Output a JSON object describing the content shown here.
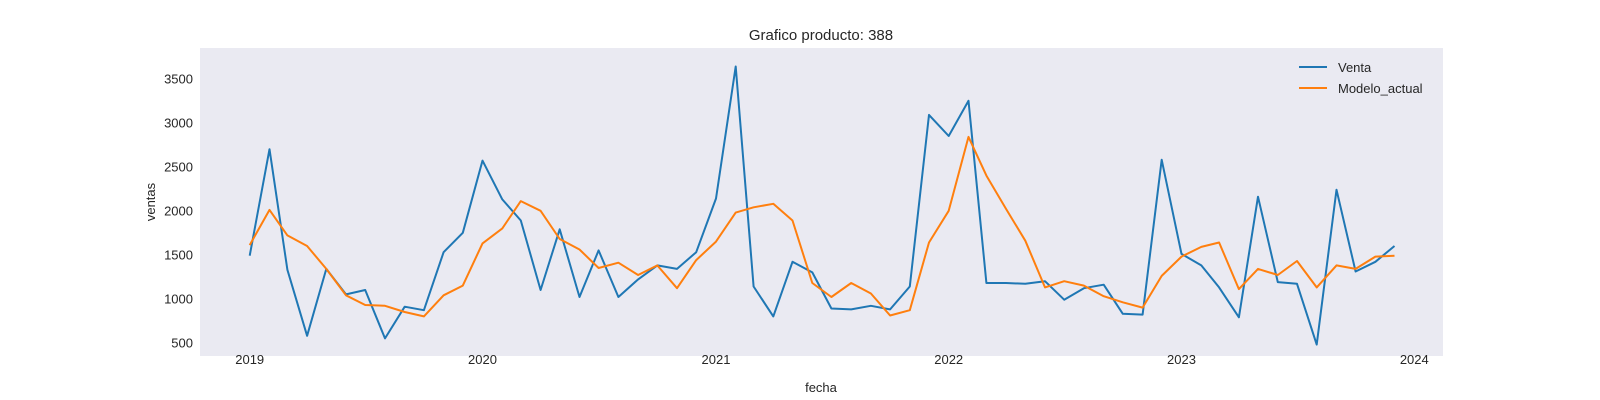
{
  "chart_data": {
    "type": "line",
    "title": "Grafico producto: 388",
    "xlabel": "fecha",
    "ylabel": "ventas",
    "x_start": "2019-01",
    "x_ticks": [
      "2019",
      "2020",
      "2021",
      "2022",
      "2023",
      "2024"
    ],
    "xlim": [
      "2018-10-15",
      "2024-02-15"
    ],
    "ylim": [
      350,
      3850
    ],
    "y_ticks": [
      500,
      1000,
      1500,
      2000,
      2500,
      3000,
      3500
    ],
    "grid": false,
    "legend_position": "top-right",
    "x": [
      "2019-01",
      "2019-02",
      "2019-03",
      "2019-04",
      "2019-05",
      "2019-06",
      "2019-07",
      "2019-08",
      "2019-09",
      "2019-10",
      "2019-11",
      "2019-12",
      "2020-01",
      "2020-02",
      "2020-03",
      "2020-04",
      "2020-05",
      "2020-06",
      "2020-07",
      "2020-08",
      "2020-09",
      "2020-10",
      "2020-11",
      "2020-12",
      "2021-01",
      "2021-02",
      "2021-03",
      "2021-04",
      "2021-05",
      "2021-06",
      "2021-07",
      "2021-08",
      "2021-09",
      "2021-10",
      "2021-11",
      "2021-12",
      "2022-01",
      "2022-02",
      "2022-03",
      "2022-04",
      "2022-05",
      "2022-06",
      "2022-07",
      "2022-08",
      "2022-09",
      "2022-10",
      "2022-11",
      "2022-12",
      "2023-01",
      "2023-02",
      "2023-03",
      "2023-04",
      "2023-05",
      "2023-06",
      "2023-07",
      "2023-08",
      "2023-09",
      "2023-10",
      "2023-11",
      "2023-12"
    ],
    "series": [
      {
        "name": "Venta",
        "color": "#1f77b4",
        "values": [
          1490,
          2700,
          1330,
          580,
          1340,
          1050,
          1100,
          550,
          910,
          870,
          1530,
          1750,
          2570,
          2130,
          1890,
          1100,
          1790,
          1020,
          1550,
          1020,
          1220,
          1380,
          1340,
          1530,
          2140,
          3640,
          1140,
          800,
          1420,
          1300,
          890,
          880,
          920,
          880,
          1140,
          3090,
          2850,
          3250,
          1180,
          1180,
          1170,
          1200,
          990,
          1120,
          1160,
          830,
          820,
          2580,
          1510,
          1380,
          1130,
          790,
          2160,
          1190,
          1170,
          480,
          2240,
          1310,
          1420,
          1600
        ]
      },
      {
        "name": "Modelo_actual",
        "color": "#ff7f0e",
        "values": [
          1610,
          2010,
          1720,
          1600,
          1340,
          1040,
          930,
          920,
          850,
          800,
          1040,
          1150,
          1630,
          1800,
          2110,
          2000,
          1680,
          1560,
          1350,
          1410,
          1270,
          1380,
          1120,
          1440,
          1650,
          1980,
          2040,
          2080,
          1890,
          1180,
          1020,
          1180,
          1060,
          810,
          870,
          1640,
          2000,
          2840,
          2400,
          2020,
          1660,
          1130,
          1200,
          1150,
          1030,
          960,
          900,
          1260,
          1480,
          1590,
          1640,
          1110,
          1340,
          1270,
          1430,
          1130,
          1380,
          1340,
          1480,
          1490
        ]
      }
    ]
  }
}
